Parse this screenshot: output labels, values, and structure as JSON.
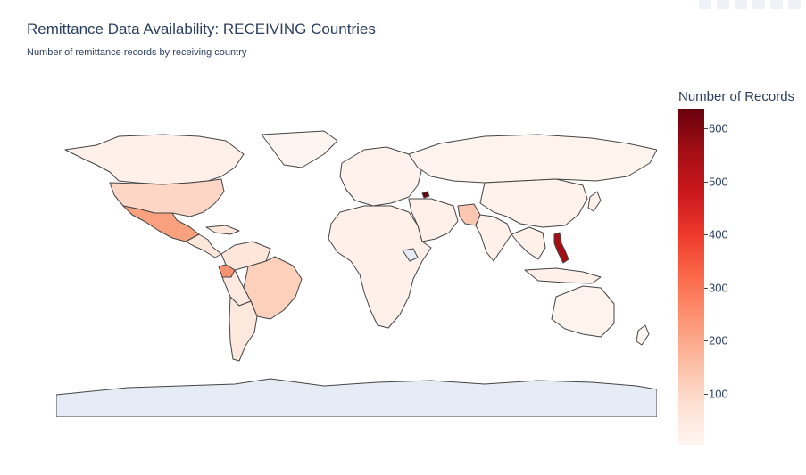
{
  "title": "Remittance Data Availability: RECEIVING Countries",
  "subtitle": "Number of remittance records by receiving country",
  "colorbar": {
    "title": "Number of Records",
    "ticks": [
      "600",
      "500",
      "400",
      "300",
      "200",
      "100"
    ],
    "range": [
      0,
      640
    ],
    "colorscale": "Reds"
  },
  "colors": {
    "land_default": "#fff5f0",
    "border": "#444444",
    "antarctica": "#e5ecf6",
    "no_data": "#e5ecf6"
  },
  "map": {
    "projection": "equirectangular",
    "highlighted_regions": [
      {
        "name": "Philippines",
        "level": "highest"
      },
      {
        "name": "Armenia",
        "level": "highest"
      },
      {
        "name": "Mexico",
        "level": "medium"
      },
      {
        "name": "Ecuador",
        "level": "medium"
      },
      {
        "name": "Pakistan",
        "level": "low"
      },
      {
        "name": "Brazil",
        "level": "low"
      },
      {
        "name": "United States",
        "level": "low"
      }
    ]
  }
}
